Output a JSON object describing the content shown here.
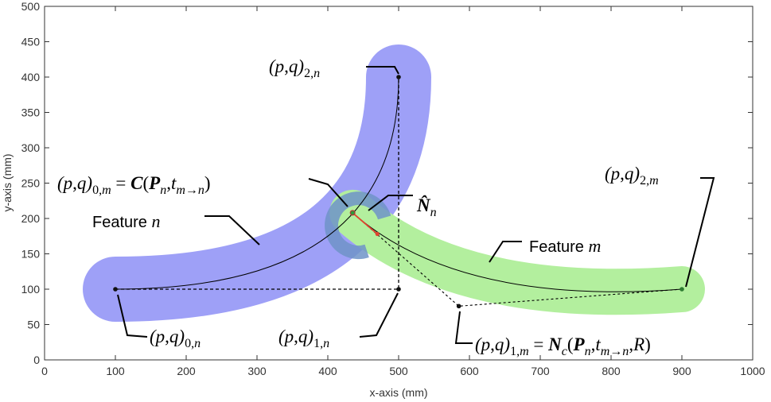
{
  "axes": {
    "xlabel": "x-axis (mm)",
    "ylabel": "y-axis (mm)",
    "xlim": [
      0,
      1000
    ],
    "ylim": [
      0,
      500
    ],
    "xticks": [
      "0",
      "100",
      "200",
      "300",
      "400",
      "500",
      "600",
      "700",
      "800",
      "900",
      "1000"
    ],
    "yticks": [
      "0",
      "50",
      "100",
      "150",
      "200",
      "250",
      "300",
      "350",
      "400",
      "450",
      "500"
    ]
  },
  "features": {
    "n_label": "Feature n",
    "m_label": "Feature m",
    "n_color": "#9ea0f7",
    "m_color": "#b3ef9e",
    "overlap_color": "#6e93c8"
  },
  "points": {
    "p0n": [
      100,
      100
    ],
    "p1n": [
      500,
      100
    ],
    "p2n": [
      500,
      400
    ],
    "p0m": [
      435,
      208
    ],
    "p1m": [
      585,
      76
    ],
    "p2m": [
      900,
      100
    ],
    "nhat_end": [
      470,
      178
    ]
  },
  "labels": {
    "p0n": "(p,q)0,n",
    "p1n": "(p,q)1,n",
    "p2n": "(p,q)2,n",
    "p0m": "(p,q)0,m = C(Pn,tm→n)",
    "p1m": "(p,q)1,m = Nc(Pn,tm→n,R)",
    "p2m": "(p,q)2,m",
    "nhat": "N̂n"
  }
}
